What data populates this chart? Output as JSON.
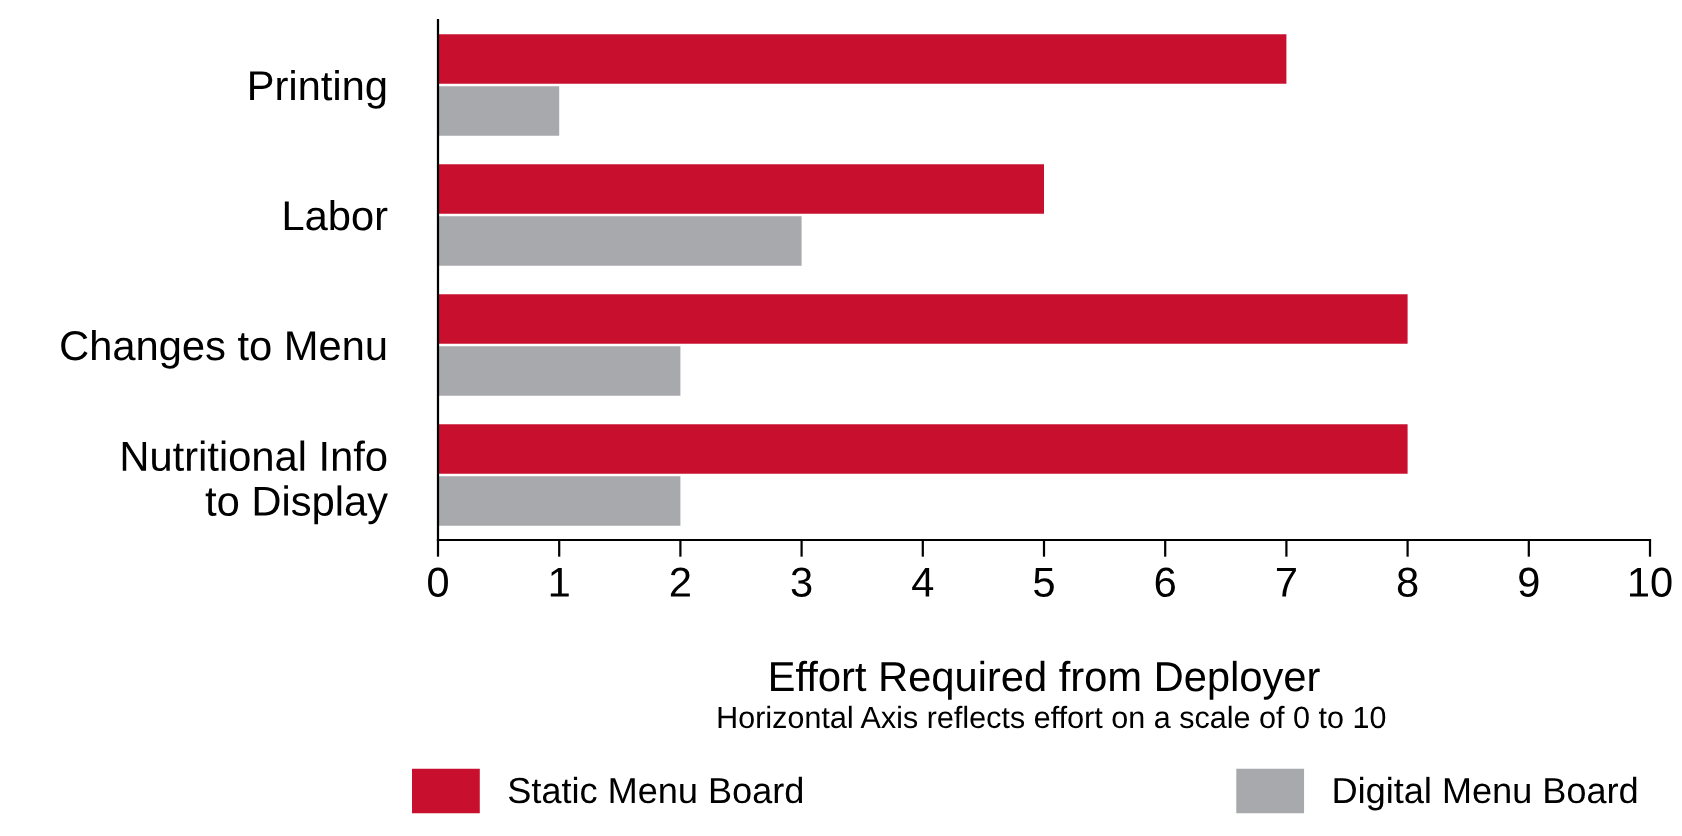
{
  "chart_data": {
    "type": "bar",
    "orientation": "horizontal",
    "categories": [
      "Printing",
      "Labor",
      "Changes to Menu",
      "Nutritional Info\nto Display"
    ],
    "series": [
      {
        "name": "Static Menu Board",
        "color": "#c8102e",
        "values": [
          7,
          5,
          8,
          8
        ]
      },
      {
        "name": "Digital Menu Board",
        "color": "#a7a9ac",
        "values": [
          1,
          3,
          2,
          2
        ]
      }
    ],
    "xlim": [
      0,
      10
    ],
    "xticks": [
      0,
      1,
      2,
      3,
      4,
      5,
      6,
      7,
      8,
      9,
      10
    ],
    "xlabel": "Effort Required from Deployer",
    "annotations": [
      "Horizontal Axis reflects effort on a scale of 0 to 10"
    ],
    "legend": "bottom",
    "grid": false
  }
}
